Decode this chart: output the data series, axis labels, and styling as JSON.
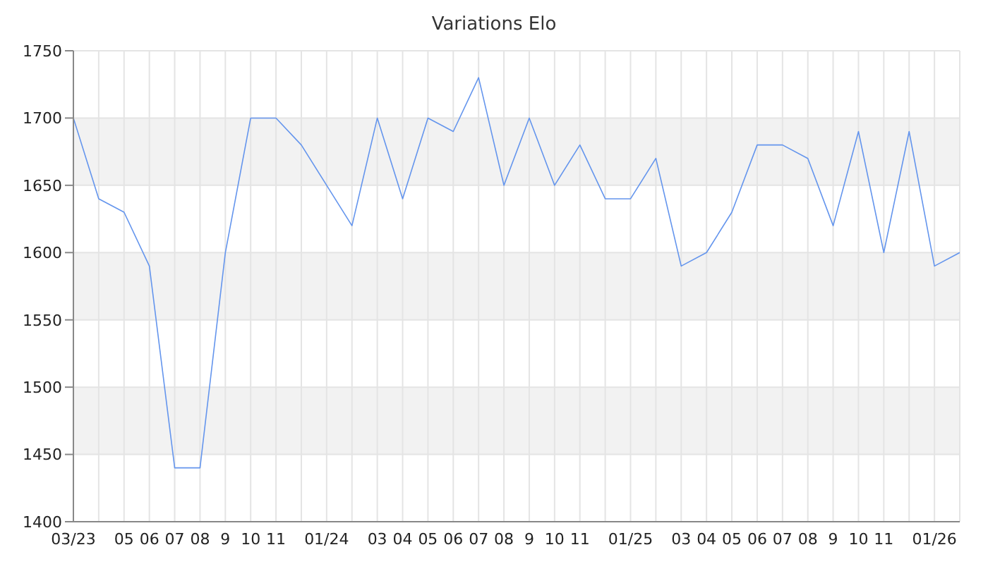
{
  "chart_data": {
    "type": "line",
    "title": "Variations Elo",
    "categories": [
      "03/23",
      null,
      "05",
      "06",
      "07",
      "08",
      "9",
      "10",
      "11",
      null,
      "01/24",
      null,
      "03",
      "04",
      "05",
      "06",
      "07",
      "08",
      "9",
      "10",
      "11",
      null,
      "01/25",
      null,
      "03",
      "04",
      "05",
      "06",
      "07",
      "08",
      "9",
      "10",
      "11",
      null,
      "01/26",
      null
    ],
    "series": [
      {
        "color": "#6495ed",
        "values": [
          1700,
          1640,
          1630,
          1590,
          1440,
          1440,
          1600,
          1700,
          1700,
          1680,
          1650,
          1620,
          1700,
          1640,
          1700,
          1690,
          1730,
          1650,
          1700,
          1650,
          1680,
          1640,
          1640,
          1670,
          1590,
          1600,
          1630,
          1680,
          1680,
          1670,
          1620,
          1690,
          1600,
          1690,
          1590,
          1600
        ]
      }
    ],
    "ylim": [
      1400,
      1750
    ],
    "yticks": [
      1400,
      1450,
      1500,
      1550,
      1600,
      1650,
      1700,
      1750
    ],
    "grid": true,
    "marker": "none",
    "line_style": "solid"
  }
}
